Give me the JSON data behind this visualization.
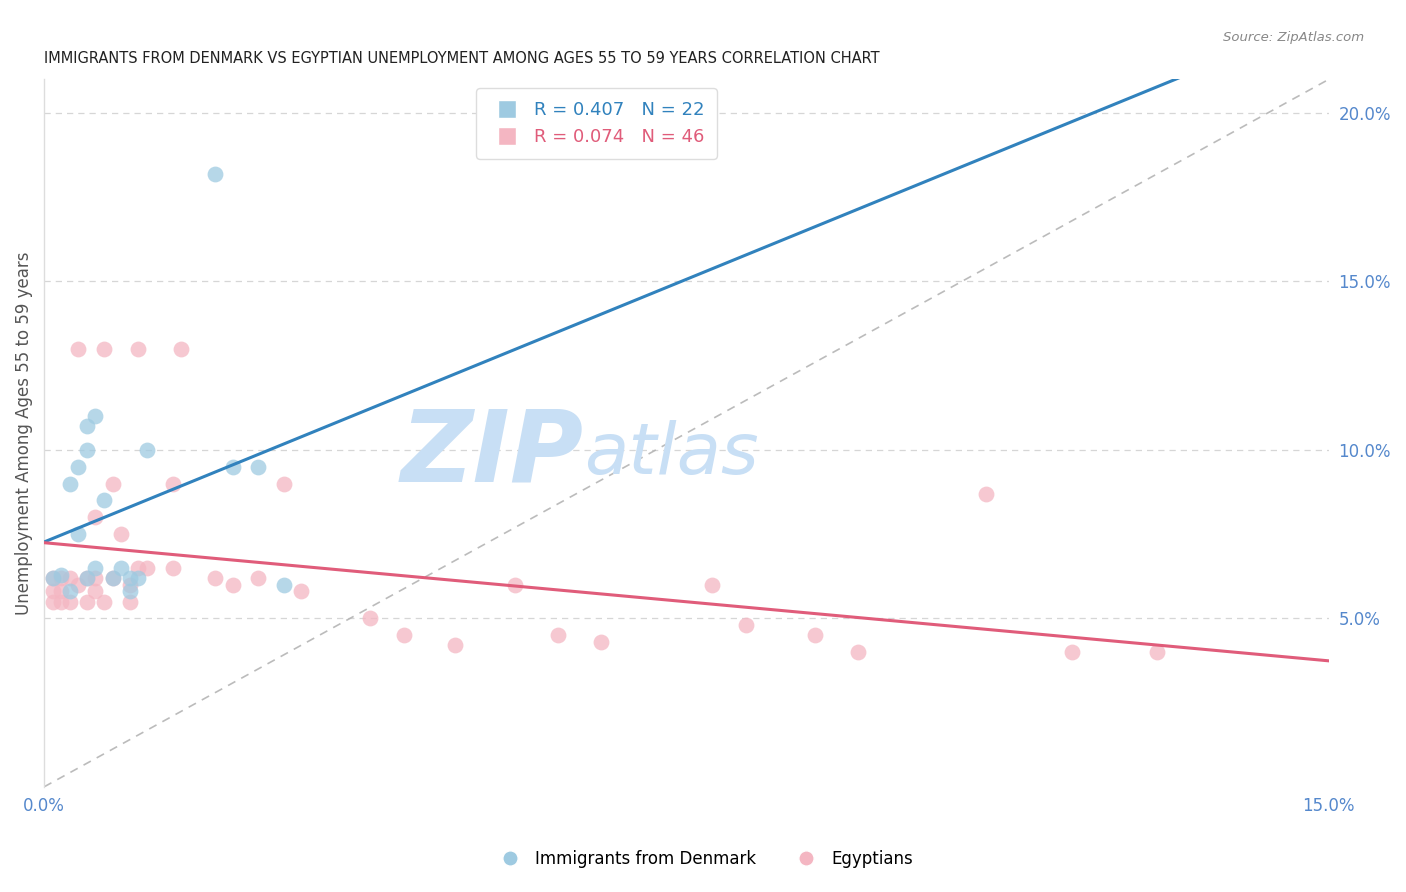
{
  "title": "IMMIGRANTS FROM DENMARK VS EGYPTIAN UNEMPLOYMENT AMONG AGES 55 TO 59 YEARS CORRELATION CHART",
  "source": "Source: ZipAtlas.com",
  "ylabel": "Unemployment Among Ages 55 to 59 years",
  "xlim": [
    0,
    0.15
  ],
  "ylim": [
    0,
    0.21
  ],
  "yticks_right": [
    0.05,
    0.1,
    0.15,
    0.2
  ],
  "ytick_right_labels": [
    "5.0%",
    "10.0%",
    "15.0%",
    "20.0%"
  ],
  "legend_denmark": "R = 0.407   N = 22",
  "legend_egypt": "R = 0.074   N = 46",
  "denmark_color": "#9ecae1",
  "egypt_color": "#f4b6c2",
  "denmark_line_color": "#3182bd",
  "egypt_line_color": "#e05c7a",
  "ref_line_color": "#b0b0b0",
  "legend_label_denmark": "Immigrants from Denmark",
  "legend_label_egypt": "Egyptians",
  "denmark_points_x": [
    0.001,
    0.002,
    0.003,
    0.003,
    0.004,
    0.004,
    0.005,
    0.005,
    0.005,
    0.006,
    0.006,
    0.007,
    0.008,
    0.009,
    0.01,
    0.01,
    0.011,
    0.012,
    0.02,
    0.022,
    0.025,
    0.028
  ],
  "denmark_points_y": [
    0.062,
    0.063,
    0.058,
    0.09,
    0.075,
    0.095,
    0.1,
    0.107,
    0.062,
    0.065,
    0.11,
    0.085,
    0.062,
    0.065,
    0.058,
    0.062,
    0.062,
    0.1,
    0.182,
    0.095,
    0.095,
    0.06
  ],
  "egypt_points_x": [
    0.001,
    0.001,
    0.001,
    0.002,
    0.002,
    0.002,
    0.003,
    0.003,
    0.004,
    0.004,
    0.005,
    0.005,
    0.006,
    0.006,
    0.006,
    0.007,
    0.007,
    0.008,
    0.008,
    0.009,
    0.01,
    0.01,
    0.011,
    0.011,
    0.012,
    0.015,
    0.015,
    0.016,
    0.02,
    0.022,
    0.025,
    0.028,
    0.03,
    0.038,
    0.042,
    0.048,
    0.055,
    0.06,
    0.065,
    0.078,
    0.082,
    0.09,
    0.095,
    0.11,
    0.12,
    0.13
  ],
  "egypt_points_y": [
    0.062,
    0.058,
    0.055,
    0.062,
    0.058,
    0.055,
    0.062,
    0.055,
    0.06,
    0.13,
    0.062,
    0.055,
    0.058,
    0.08,
    0.062,
    0.055,
    0.13,
    0.062,
    0.09,
    0.075,
    0.06,
    0.055,
    0.065,
    0.13,
    0.065,
    0.09,
    0.065,
    0.13,
    0.062,
    0.06,
    0.062,
    0.09,
    0.058,
    0.05,
    0.045,
    0.042,
    0.06,
    0.045,
    0.043,
    0.06,
    0.048,
    0.045,
    0.04,
    0.087,
    0.04,
    0.04
  ],
  "background_color": "#ffffff",
  "grid_color": "#cccccc",
  "title_color": "#222222",
  "axis_label_color": "#555555",
  "right_axis_color": "#5588cc",
  "watermark_zip_color": "#c8dff5",
  "watermark_atlas_color": "#c8dff5"
}
